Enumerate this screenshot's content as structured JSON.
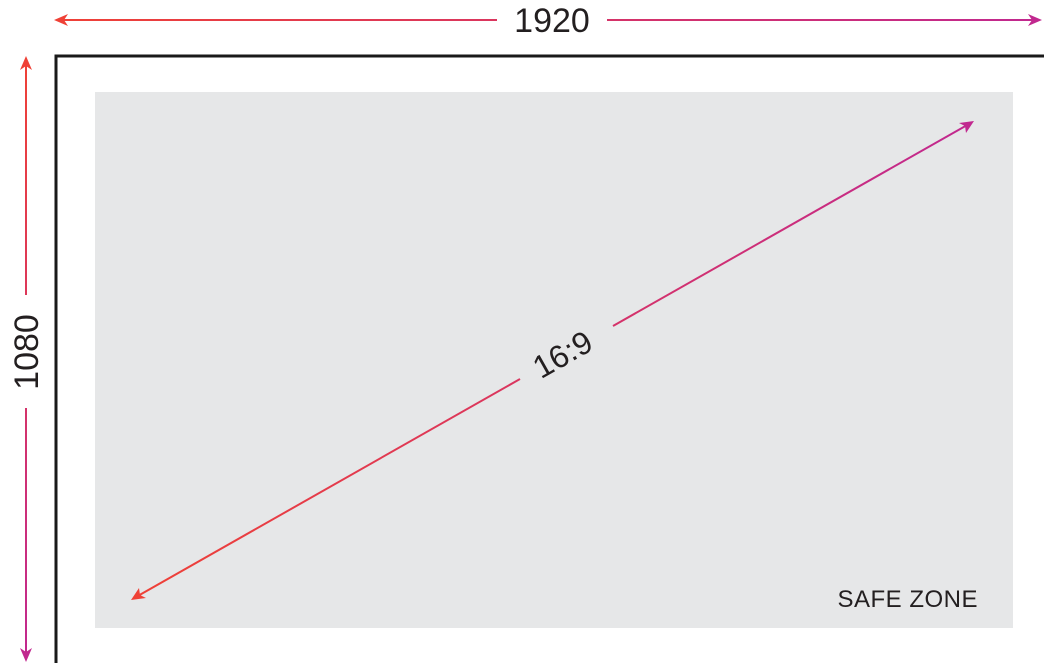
{
  "width_label": "1920",
  "height_label": "1080",
  "ratio_label": "16:9",
  "safe_zone_label": "SAFE ZONE",
  "colors": {
    "gradient_start": "#ef4136",
    "gradient_end": "#c1288f",
    "frame": "#1a1a1a",
    "safe_zone_fill": "#e6e7e8",
    "text": "#231f20"
  }
}
